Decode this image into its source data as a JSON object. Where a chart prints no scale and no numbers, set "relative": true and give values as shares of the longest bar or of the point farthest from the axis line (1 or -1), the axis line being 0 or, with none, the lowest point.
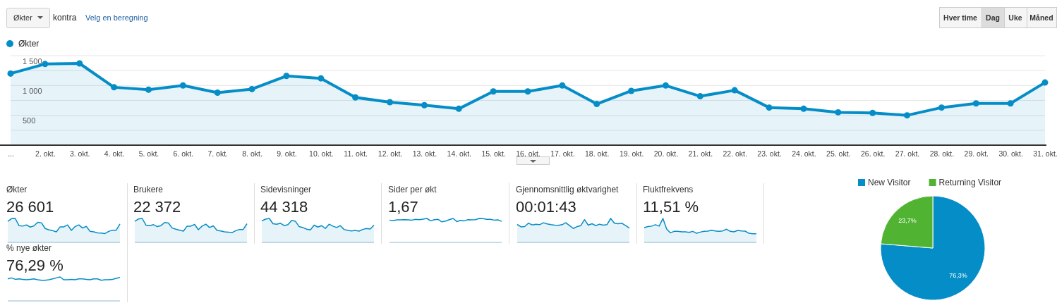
{
  "chart_data": [
    {
      "type": "area",
      "categories": [
        "...",
        "2. okt.",
        "3. okt.",
        "4. okt.",
        "5. okt.",
        "6. okt.",
        "7. okt.",
        "8. okt.",
        "9. okt.",
        "10. okt.",
        "11. okt.",
        "12. okt.",
        "13. okt.",
        "14. okt.",
        "15. okt.",
        "16. okt.",
        "17. okt.",
        "18. okt.",
        "19. okt.",
        "20. okt.",
        "21. okt.",
        "22. okt.",
        "23. okt.",
        "24. okt.",
        "25. okt.",
        "26. okt.",
        "27. okt.",
        "28. okt.",
        "29. okt.",
        "30. okt.",
        "31. okt."
      ],
      "series": [
        {
          "name": "Økter",
          "color": "#058dc7",
          "values": [
            1200,
            1360,
            1370,
            970,
            930,
            1000,
            880,
            940,
            1160,
            1120,
            800,
            720,
            670,
            610,
            900,
            900,
            1000,
            690,
            910,
            1000,
            820,
            920,
            630,
            610,
            550,
            540,
            500,
            630,
            700,
            700,
            1050
          ]
        }
      ],
      "ylim": [
        0,
        1500
      ],
      "yticks": [
        {
          "value": 250,
          "label": null
        },
        500,
        {
          "value": 750,
          "label": null
        },
        1000,
        {
          "value": 1250,
          "label": null
        },
        1500
      ],
      "grid": "y",
      "legend": "top left",
      "marker": "circle",
      "annotations": [
        "Økter",
        "kontra",
        "Velg en beregning",
        "Hver time",
        "Dag",
        "Uke",
        "Måned"
      ]
    },
    {
      "type": "area",
      "relative": true,
      "title": "Økter",
      "subtitle": "26 601",
      "color": "#058dc7",
      "categories": [
        null,
        null,
        null,
        null,
        null,
        null,
        null,
        null,
        null,
        null,
        null,
        null,
        null,
        null,
        null,
        null,
        null,
        null,
        null,
        null,
        null,
        null,
        null,
        null,
        null,
        null,
        null,
        null,
        null,
        null,
        null
      ],
      "values": [
        0.88,
        0.99,
        1,
        0.7,
        0.68,
        0.73,
        0.64,
        0.69,
        0.84,
        0.82,
        0.58,
        0.52,
        0.49,
        0.44,
        0.65,
        0.65,
        0.73,
        0.5,
        0.66,
        0.73,
        0.6,
        0.67,
        0.46,
        0.44,
        0.4,
        0.39,
        0.37,
        0.46,
        0.51,
        0.51,
        0.77
      ]
    },
    {
      "type": "area",
      "relative": true,
      "title": "Brukere",
      "subtitle": "22 372",
      "color": "#058dc7",
      "categories": [
        null,
        null,
        null,
        null,
        null,
        null,
        null,
        null,
        null,
        null,
        null,
        null,
        null,
        null,
        null,
        null,
        null,
        null,
        null,
        null,
        null,
        null,
        null,
        null,
        null,
        null,
        null,
        null,
        null,
        null,
        null
      ],
      "values": [
        0.88,
        0.98,
        1,
        0.72,
        0.7,
        0.74,
        0.66,
        0.7,
        0.83,
        0.81,
        0.6,
        0.55,
        0.51,
        0.47,
        0.68,
        0.68,
        0.75,
        0.53,
        0.68,
        0.76,
        0.62,
        0.69,
        0.5,
        0.48,
        0.44,
        0.43,
        0.41,
        0.49,
        0.54,
        0.54,
        0.78
      ]
    },
    {
      "type": "area",
      "relative": true,
      "title": "Sidevisninger",
      "subtitle": "44 318",
      "color": "#058dc7",
      "categories": [
        null,
        null,
        null,
        null,
        null,
        null,
        null,
        null,
        null,
        null,
        null,
        null,
        null,
        null,
        null,
        null,
        null,
        null,
        null,
        null,
        null,
        null,
        null,
        null,
        null,
        null,
        null,
        null,
        null,
        null,
        null
      ],
      "values": [
        0.9,
        0.97,
        1,
        0.78,
        0.76,
        0.8,
        0.7,
        0.74,
        0.92,
        0.88,
        0.66,
        0.62,
        0.55,
        0.52,
        0.72,
        0.64,
        0.7,
        0.58,
        0.76,
        0.68,
        0.62,
        0.7,
        0.54,
        0.5,
        0.48,
        0.5,
        0.47,
        0.54,
        0.58,
        0.56,
        0.72
      ]
    },
    {
      "type": "line",
      "relative": true,
      "title": "Sider per økt",
      "subtitle": "1,67",
      "color": "#058dc7",
      "categories": [
        null,
        null,
        null,
        null,
        null,
        null,
        null,
        null,
        null,
        null,
        null,
        null,
        null,
        null,
        null,
        null,
        null,
        null,
        null,
        null,
        null,
        null,
        null,
        null,
        null,
        null,
        null,
        null,
        null,
        null,
        null
      ],
      "values": [
        0.93,
        0.91,
        0.94,
        0.94,
        0.95,
        0.94,
        0.93,
        0.96,
        0.95,
        0.97,
        1,
        0.9,
        0.95,
        0.96,
        0.86,
        0.89,
        0.95,
        1,
        0.87,
        0.92,
        0.9,
        0.95,
        0.94,
        0.95,
        1,
        0.99,
        0.96,
        0.96,
        0.93,
        0.94,
        0.88
      ]
    },
    {
      "type": "area",
      "relative": true,
      "title": "Gjennomsnittlig øktvarighet",
      "subtitle": "00:01:43",
      "color": "#058dc7",
      "categories": [
        null,
        null,
        null,
        null,
        null,
        null,
        null,
        null,
        null,
        null,
        null,
        null,
        null,
        null,
        null,
        null,
        null,
        null,
        null,
        null,
        null,
        null,
        null,
        null,
        null,
        null,
        null,
        null,
        null,
        null,
        null
      ],
      "values": [
        0.75,
        0.65,
        0.66,
        0.8,
        0.73,
        0.76,
        0.74,
        0.82,
        0.77,
        0.74,
        0.72,
        0.71,
        0.74,
        0.82,
        0.7,
        0.58,
        0.66,
        0.7,
        0.95,
        0.72,
        0.78,
        0.7,
        0.76,
        0.72,
        0.74,
        1,
        0.8,
        0.78,
        0.8,
        0.7,
        0.6
      ]
    },
    {
      "type": "area",
      "relative": true,
      "title": "Fluktfrekvens",
      "subtitle": "11,51 %",
      "color": "#058dc7",
      "categories": [
        null,
        null,
        null,
        null,
        null,
        null,
        null,
        null,
        null,
        null,
        null,
        null,
        null,
        null,
        null,
        null,
        null,
        null,
        null,
        null,
        null,
        null,
        null,
        null,
        null,
        null,
        null,
        null,
        null,
        null,
        null
      ],
      "values": [
        0.62,
        0.66,
        0.68,
        0.74,
        0.68,
        1,
        0.56,
        0.4,
        0.46,
        0.46,
        0.44,
        0.44,
        0.42,
        0.46,
        0.38,
        0.43,
        0.46,
        0.47,
        0.51,
        0.48,
        0.46,
        0.48,
        0.55,
        0.46,
        0.44,
        0.5,
        0.48,
        0.47,
        0.38,
        0.36,
        0.36
      ]
    },
    {
      "type": "line",
      "relative": true,
      "title": "% nye økter",
      "subtitle": "76,29 %",
      "color": "#058dc7",
      "categories": [
        null,
        null,
        null,
        null,
        null,
        null,
        null,
        null,
        null,
        null,
        null,
        null,
        null,
        null,
        null,
        null,
        null,
        null,
        null,
        null,
        null,
        null,
        null,
        null,
        null,
        null,
        null,
        null,
        null,
        null,
        null
      ],
      "values": [
        0.92,
        0.96,
        0.9,
        0.92,
        0.9,
        0.88,
        0.9,
        0.92,
        0.88,
        0.86,
        0.86,
        0.88,
        0.92,
        0.96,
        1,
        0.88,
        0.88,
        0.9,
        0.88,
        0.92,
        0.92,
        0.9,
        0.88,
        0.92,
        0.92,
        0.86,
        0.88,
        0.88,
        0.9,
        0.94,
        0.98
      ]
    },
    {
      "type": "pie",
      "categories": [
        "New Visitor",
        "Returning Visitor"
      ],
      "values": [
        76.3,
        23.7
      ],
      "colors": [
        "#058dc7",
        "#50b432"
      ],
      "value_labels": [
        "76,3%",
        "23,7%"
      ],
      "legend": "top"
    }
  ]
}
